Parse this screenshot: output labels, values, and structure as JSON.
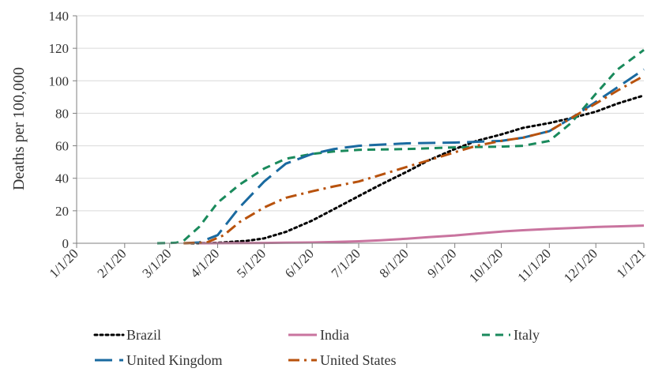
{
  "chart_data": {
    "type": "line",
    "xlabel": "",
    "ylabel": "Deaths per 100,000",
    "ylim": [
      0,
      140
    ],
    "yticks": [
      0,
      20,
      40,
      60,
      80,
      100,
      120,
      140
    ],
    "xticks": [
      "1/1/20",
      "2/1/20",
      "3/1/20",
      "4/1/20",
      "5/1/20",
      "6/1/20",
      "7/1/20",
      "8/1/20",
      "9/1/20",
      "10/1/20",
      "11/1/20",
      "12/1/20",
      "1/1/21"
    ],
    "grid": "horizontal",
    "legend_position": "bottom",
    "series": [
      {
        "name": "Brazil",
        "color": "#000000",
        "dash": "dotted",
        "points": [
          [
            "3/15/20",
            0
          ],
          [
            "4/1/20",
            0.3
          ],
          [
            "4/20/20",
            1.5
          ],
          [
            "5/1/20",
            3
          ],
          [
            "5/15/20",
            7
          ],
          [
            "6/1/20",
            14
          ],
          [
            "6/15/20",
            21
          ],
          [
            "7/1/20",
            29
          ],
          [
            "7/15/20",
            36
          ],
          [
            "8/1/20",
            44
          ],
          [
            "8/15/20",
            51
          ],
          [
            "9/1/20",
            58
          ],
          [
            "9/15/20",
            63
          ],
          [
            "10/1/20",
            67
          ],
          [
            "10/15/20",
            71
          ],
          [
            "11/1/20",
            74
          ],
          [
            "11/15/20",
            77
          ],
          [
            "12/1/20",
            81
          ],
          [
            "12/15/20",
            86
          ],
          [
            "1/1/21",
            91
          ]
        ]
      },
      {
        "name": "India",
        "color": "#c9749f",
        "dash": "solid",
        "points": [
          [
            "3/20/20",
            0
          ],
          [
            "4/15/20",
            0.1
          ],
          [
            "5/1/20",
            0.2
          ],
          [
            "5/15/20",
            0.4
          ],
          [
            "6/1/20",
            0.5
          ],
          [
            "6/15/20",
            0.8
          ],
          [
            "7/1/20",
            1.2
          ],
          [
            "7/15/20",
            1.8
          ],
          [
            "8/1/20",
            2.8
          ],
          [
            "8/15/20",
            3.8
          ],
          [
            "9/1/20",
            4.8
          ],
          [
            "9/15/20",
            6
          ],
          [
            "10/1/20",
            7.2
          ],
          [
            "10/15/20",
            8
          ],
          [
            "11/1/20",
            8.8
          ],
          [
            "11/15/20",
            9.4
          ],
          [
            "12/1/20",
            10
          ],
          [
            "12/15/20",
            10.4
          ],
          [
            "1/1/21",
            10.9
          ]
        ]
      },
      {
        "name": "Italy",
        "color": "#1a8a5c",
        "dash": "dashed",
        "points": [
          [
            "2/22/20",
            0
          ],
          [
            "3/5/20",
            0.3
          ],
          [
            "3/10/20",
            1.5
          ],
          [
            "3/20/20",
            10
          ],
          [
            "4/1/20",
            25
          ],
          [
            "4/15/20",
            36
          ],
          [
            "5/1/20",
            46
          ],
          [
            "5/15/20",
            52
          ],
          [
            "6/1/20",
            55
          ],
          [
            "6/15/20",
            56.5
          ],
          [
            "7/1/20",
            57.5
          ],
          [
            "8/1/20",
            58
          ],
          [
            "9/1/20",
            59
          ],
          [
            "10/1/20",
            59.5
          ],
          [
            "10/15/20",
            60
          ],
          [
            "11/1/20",
            63
          ],
          [
            "11/15/20",
            74
          ],
          [
            "12/1/20",
            92
          ],
          [
            "12/15/20",
            107
          ],
          [
            "1/1/21",
            119
          ]
        ]
      },
      {
        "name": "United Kingdom",
        "color": "#1a6aa0",
        "dash": "long-dash",
        "points": [
          [
            "3/10/20",
            0
          ],
          [
            "3/20/20",
            0.5
          ],
          [
            "4/1/20",
            5
          ],
          [
            "4/15/20",
            22
          ],
          [
            "5/1/20",
            38
          ],
          [
            "5/15/20",
            49
          ],
          [
            "6/1/20",
            55
          ],
          [
            "6/15/20",
            58
          ],
          [
            "7/1/20",
            60
          ],
          [
            "8/1/20",
            61.5
          ],
          [
            "9/1/20",
            62
          ],
          [
            "10/1/20",
            63
          ],
          [
            "10/15/20",
            65
          ],
          [
            "11/1/20",
            69
          ],
          [
            "11/15/20",
            77
          ],
          [
            "12/1/20",
            87
          ],
          [
            "12/15/20",
            96
          ],
          [
            "1/1/21",
            107
          ]
        ]
      },
      {
        "name": "United States",
        "color": "#b8520d",
        "dash": "dash-dot",
        "points": [
          [
            "3/10/20",
            0
          ],
          [
            "3/25/20",
            0.5
          ],
          [
            "4/5/20",
            5
          ],
          [
            "4/15/20",
            13
          ],
          [
            "5/1/20",
            22
          ],
          [
            "5/15/20",
            28
          ],
          [
            "6/1/20",
            32
          ],
          [
            "6/15/20",
            35
          ],
          [
            "7/1/20",
            38
          ],
          [
            "7/15/20",
            42
          ],
          [
            "8/1/20",
            47
          ],
          [
            "8/15/20",
            51
          ],
          [
            "9/1/20",
            56
          ],
          [
            "9/15/20",
            60
          ],
          [
            "10/1/20",
            63
          ],
          [
            "10/15/20",
            65
          ],
          [
            "11/1/20",
            69
          ],
          [
            "11/15/20",
            77
          ],
          [
            "12/1/20",
            86
          ],
          [
            "12/15/20",
            94
          ],
          [
            "1/1/21",
            103
          ]
        ]
      }
    ]
  }
}
